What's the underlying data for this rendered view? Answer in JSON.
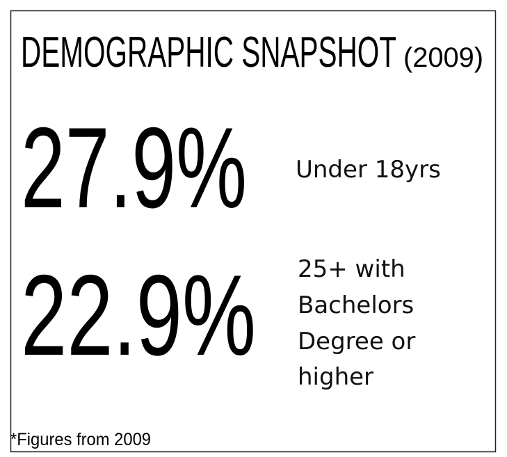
{
  "title": {
    "main": "DEMOGRAPHIC SNAPSHOT",
    "year": "(2009)"
  },
  "stats": [
    {
      "value": "27.9%",
      "label_lines": [
        "Under 18yrs"
      ]
    },
    {
      "value": "22.9%",
      "label_lines": [
        "25+ with",
        "Bachelors",
        "Degree or",
        "higher"
      ]
    }
  ],
  "footnote": "*Figures from 2009"
}
